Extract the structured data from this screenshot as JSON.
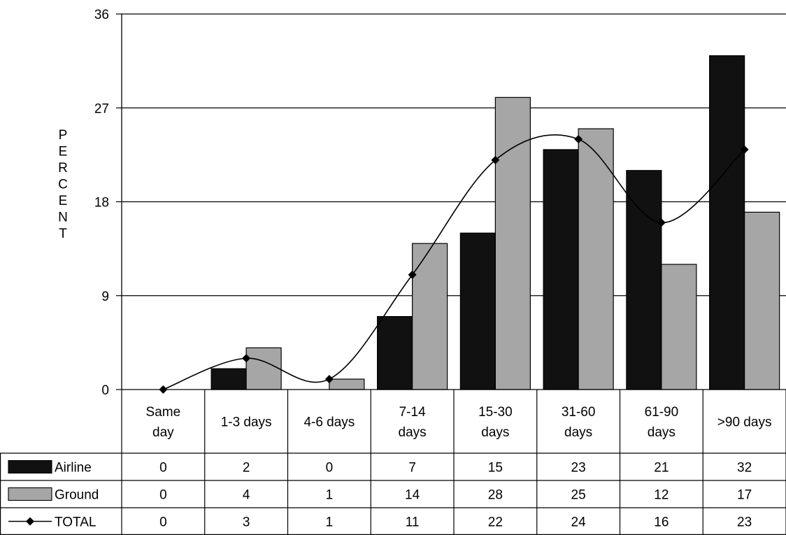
{
  "chart_data": {
    "type": "bar",
    "title": "",
    "xlabel": "",
    "ylabel": "PERCENT",
    "ylim": [
      0,
      36
    ],
    "yticks": [
      "0",
      "9",
      "18",
      "27",
      "36"
    ],
    "grid": true,
    "legend_placement": "data table rows at bottom-left",
    "categories": [
      [
        "Same",
        "day"
      ],
      [
        "1-3 days"
      ],
      [
        "4-6 days"
      ],
      [
        "7-14",
        "days"
      ],
      [
        "15-30",
        "days"
      ],
      [
        "31-60",
        "days"
      ],
      [
        "61-90",
        "days"
      ],
      [
        ">90 days"
      ]
    ],
    "series": [
      {
        "name": "Airline",
        "kind": "bar",
        "color": "#111111",
        "values": [
          0,
          2,
          0,
          7,
          15,
          23,
          21,
          32
        ]
      },
      {
        "name": "Ground",
        "kind": "bar",
        "color": "#a6a6a6",
        "values": [
          0,
          4,
          1,
          14,
          28,
          25,
          12,
          17
        ]
      },
      {
        "name": "TOTAL",
        "kind": "line",
        "color": "#000000",
        "marker": "diamond",
        "values": [
          0,
          3,
          1,
          11,
          22,
          24,
          16,
          23
        ]
      }
    ]
  }
}
